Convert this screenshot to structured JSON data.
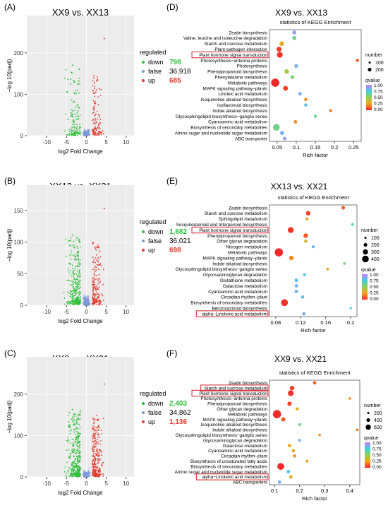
{
  "panels": [
    {
      "label": "(A)",
      "title": "XX9 vs. XX13",
      "xlabel": "log2 Fold Change",
      "ylabel": "−log 10(padj)",
      "legend_title": "regulated",
      "legend": [
        {
          "name": "down",
          "count": "798",
          "color": "#2fbf3b"
        },
        {
          "name": "false",
          "count": "36,918",
          "color": "#7f9ad8"
        },
        {
          "name": "up",
          "count": "685",
          "color": "#e33a2e"
        }
      ]
    },
    {
      "label": "(D)",
      "title": "XX9 vs. XX13",
      "subtitle": "statistics of KEGG Enrichment",
      "xlabel": "Rich factor",
      "size_title": "number",
      "size_legend": [
        "100",
        "200"
      ],
      "color_title": "qvalue",
      "color_ticks": [
        "1.00",
        "0.75",
        "0.50",
        "0.25",
        "0.00"
      ]
    },
    {
      "label": "(B)",
      "title": "XX13 vs. XX21",
      "xlabel": "log2 Fold Change",
      "ylabel": "−log 10(padj)",
      "legend_title": "regulated",
      "legend": [
        {
          "name": "down",
          "count": "1,682",
          "color": "#2fbf3b"
        },
        {
          "name": "false",
          "count": "36,021",
          "color": "#7f9ad8"
        },
        {
          "name": "up",
          "count": "698",
          "color": "#e33a2e"
        }
      ]
    },
    {
      "label": "(E)",
      "title": "XX13 vs. XX21",
      "subtitle": "statistics of KEGG Enrichment",
      "xlabel": "Rich factor",
      "size_title": "number",
      "size_legend": [
        "100",
        "200",
        "300",
        "400"
      ],
      "color_title": "qvalue",
      "color_ticks": [
        "1.00",
        "0.75",
        "0.50",
        "0.25",
        "0.00"
      ]
    },
    {
      "label": "(C)",
      "title": "XX9 vs. XX21",
      "xlabel": "log2 Fold Change",
      "ylabel": "−log 10(padj)",
      "legend_title": "regulated",
      "legend": [
        {
          "name": "down",
          "count": "2,403",
          "color": "#2fbf3b"
        },
        {
          "name": "false",
          "count": "34,862",
          "color": "#7f9ad8"
        },
        {
          "name": "up",
          "count": "1,136",
          "color": "#e33a2e"
        }
      ]
    },
    {
      "label": "(F)",
      "title": "XX9 vs. XX21",
      "subtitle": "statistics of KEGG Enrichment",
      "xlabel": "Rich factor",
      "size_title": "number",
      "size_legend": [
        "200",
        "400",
        "600"
      ],
      "color_title": "qvalue",
      "color_ticks": [
        "1.00",
        "0.75",
        "0.50",
        "0.25",
        "0.00"
      ]
    }
  ],
  "colors": {
    "down": "#2fbf3b",
    "false": "#7f9ad8",
    "up": "#e33a2e",
    "highlight_box": "#d3232a",
    "qvalue_scale": [
      "#f02a2a",
      "#f9a11b",
      "#8fd14f",
      "#3fd1e0",
      "#c77dff"
    ]
  },
  "chart_data": [
    {
      "type": "scatter",
      "title": "XX9 vs. XX13",
      "xlabel": "log2 Fold Change",
      "ylabel": "−log 10(padj)",
      "xlim": [
        -15,
        12
      ],
      "ylim": [
        0,
        290
      ],
      "xticks": [
        -10,
        -5,
        0,
        5,
        10
      ],
      "yticks": [
        0,
        100,
        200
      ],
      "series": [
        {
          "name": "down",
          "count": 798
        },
        {
          "name": "false",
          "count": 36918
        },
        {
          "name": "up",
          "count": 685
        }
      ]
    },
    {
      "type": "scatter",
      "title": "XX9 vs. XX13",
      "subtitle": "statistics of KEGG Enrichment",
      "xlabel": "Rich factor",
      "xlim": [
        0.03,
        0.27
      ],
      "xticks": [
        0.05,
        0.1,
        0.15,
        0.2,
        0.25
      ],
      "pathways": [
        {
          "name": "Zeatin biosynthesis",
          "rich": 0.095,
          "number": 18,
          "q": 0.9
        },
        {
          "name": "Valine, leucine and isoleucine degradation",
          "rich": 0.095,
          "number": 20,
          "q": 0.6
        },
        {
          "name": "Starch and sucrose metabolism",
          "rich": 0.062,
          "number": 30,
          "q": 0.3
        },
        {
          "name": "Plant-pathogen interaction",
          "rich": 0.055,
          "number": 40,
          "q": 0.05
        },
        {
          "name": "Plant hormone signal transduction",
          "rich": 0.057,
          "number": 60,
          "q": 0.02,
          "highlight": true
        },
        {
          "name": "Photosynthesis−antenna proteins",
          "rich": 0.26,
          "number": 8,
          "q": 0.1
        },
        {
          "name": "Photosynthesis",
          "rich": 0.1,
          "number": 15,
          "q": 0.85
        },
        {
          "name": "Phenylpropanoid biosynthesis",
          "rich": 0.075,
          "number": 30,
          "q": 0.45
        },
        {
          "name": "Phenylalanine metabolism",
          "rich": 0.09,
          "number": 15,
          "q": 0.55
        },
        {
          "name": "Metabolic pathways",
          "rich": 0.045,
          "number": 150,
          "q": 0.0
        },
        {
          "name": "MAPK signaling pathway−plants",
          "rich": 0.072,
          "number": 35,
          "q": 0.05
        },
        {
          "name": "Linoleic acid metabolism",
          "rich": 0.11,
          "number": 10,
          "q": 0.85
        },
        {
          "name": "Isoquinoline alkaloid biosynthesis",
          "rich": 0.125,
          "number": 8,
          "q": 0.2
        },
        {
          "name": "Isoflavonoid biosynthesis",
          "rich": 0.125,
          "number": 8,
          "q": 0.8
        },
        {
          "name": "Indole alkaloid biosynthesis",
          "rich": 0.19,
          "number": 5,
          "q": 0.15
        },
        {
          "name": "Glycosphingolipid biosynthesis−ganglio series",
          "rich": 0.15,
          "number": 6,
          "q": 0.6
        },
        {
          "name": "Cyanoamino acid metabolism",
          "rich": 0.098,
          "number": 12,
          "q": 0.2
        },
        {
          "name": "Biosynthesis of secondary metabolites",
          "rich": 0.048,
          "number": 90,
          "q": 0.6
        },
        {
          "name": "Amino sugar and nucleotide sugar metabolism",
          "rich": 0.063,
          "number": 20,
          "q": 0.85
        },
        {
          "name": "ABC transporter",
          "rich": 0.07,
          "number": 12,
          "q": 0.9
        }
      ]
    },
    {
      "type": "scatter",
      "title": "XX13 vs. XX21",
      "xlabel": "log2 Fold Change",
      "ylabel": "−log 10(padj)",
      "xlim": [
        -15,
        12
      ],
      "ylim": [
        0,
        190
      ],
      "xticks": [
        -10,
        -5,
        0,
        5,
        10
      ],
      "yticks": [
        0,
        50,
        100,
        150
      ],
      "series": [
        {
          "name": "down",
          "count": 1682
        },
        {
          "name": "false",
          "count": 36021
        },
        {
          "name": "up",
          "count": 698
        }
      ]
    },
    {
      "type": "scatter",
      "title": "XX13 vs. XX21",
      "subtitle": "statistics of KEGG Enrichment",
      "xlabel": "Rich factor",
      "xlim": [
        0.07,
        0.21
      ],
      "xticks": [
        0.08,
        0.12,
        0.16,
        0.2
      ],
      "pathways": [
        {
          "name": "Zeatin biosynthesis",
          "rich": 0.188,
          "number": 40,
          "q": 0.1
        },
        {
          "name": "Starch and sucrose metabolism",
          "rich": 0.132,
          "number": 80,
          "q": 0.05
        },
        {
          "name": "Sphingolipid metabolism",
          "rich": 0.13,
          "number": 20,
          "q": 0.3
        },
        {
          "name": "Sesquiterpenoid and triterpenoid biosynthesis",
          "rich": 0.203,
          "number": 10,
          "q": 0.7
        },
        {
          "name": "Plant hormone signal transduction",
          "rich": 0.104,
          "number": 180,
          "q": 0.02,
          "highlight": true
        },
        {
          "name": "Phenylpropanoid biosynthesis",
          "rich": 0.128,
          "number": 80,
          "q": 0.1
        },
        {
          "name": "Other glycan degradation",
          "rich": 0.128,
          "number": 20,
          "q": 0.35
        },
        {
          "name": "Nitrogen metabolism",
          "rich": 0.14,
          "number": 15,
          "q": 0.85
        },
        {
          "name": "Metabolic pathways",
          "rich": 0.085,
          "number": 430,
          "q": 0.0
        },
        {
          "name": "MAPK signaling pathway−plants",
          "rich": 0.105,
          "number": 80,
          "q": 0.2
        },
        {
          "name": "Indole alkaloid biosynthesis",
          "rich": 0.19,
          "number": 8,
          "q": 0.6
        },
        {
          "name": "Glycosphingolipid biosynthesis−ganglio series",
          "rich": 0.163,
          "number": 10,
          "q": 0.25
        },
        {
          "name": "Glycosaminoglycan degradation",
          "rich": 0.126,
          "number": 20,
          "q": 0.8
        },
        {
          "name": "Glutathione metabolism",
          "rich": 0.113,
          "number": 35,
          "q": 0.8
        },
        {
          "name": "Galactose metabolism",
          "rich": 0.113,
          "number": 30,
          "q": 0.85
        },
        {
          "name": "Cyanoamino acid metabolism",
          "rich": 0.113,
          "number": 30,
          "q": 0.85
        },
        {
          "name": "Circadian rhythm−plant",
          "rich": 0.123,
          "number": 25,
          "q": 0.8
        },
        {
          "name": "Biosynthesis of secondary metabolites",
          "rich": 0.094,
          "number": 280,
          "q": 0.02
        },
        {
          "name": "Benzoxazinoid biosynthesis",
          "rich": 0.2,
          "number": 5,
          "q": 0.75
        },
        {
          "name": "alpha−Linolenic acid metabolism",
          "rich": 0.125,
          "number": 30,
          "q": 0.85,
          "highlight": true
        }
      ]
    },
    {
      "type": "scatter",
      "title": "XX9 vs. XX21",
      "xlabel": "log2 Fold Change",
      "ylabel": "−log 10(padj)",
      "xlim": [
        -15,
        12
      ],
      "ylim": [
        0,
        290
      ],
      "xticks": [
        -10,
        -5,
        0,
        5,
        10
      ],
      "yticks": [
        0,
        100,
        200
      ],
      "series": [
        {
          "name": "down",
          "count": 2403
        },
        {
          "name": "false",
          "count": 34862
        },
        {
          "name": "up",
          "count": 1136
        }
      ]
    },
    {
      "type": "scatter",
      "title": "XX9 vs. XX21",
      "subtitle": "statistics of KEGG Enrichment",
      "xlabel": "Rich factor",
      "xlim": [
        0.08,
        0.44
      ],
      "xticks": [
        0.1,
        0.2,
        0.3,
        0.4
      ],
      "pathways": [
        {
          "name": "Zeatin biosynthesis",
          "rich": 0.26,
          "number": 40,
          "q": 0.1
        },
        {
          "name": "Starch and sucrose metabolism",
          "rich": 0.17,
          "number": 120,
          "q": 0.05,
          "highlight": true
        },
        {
          "name": "Plant hormone signal transduction",
          "rich": 0.165,
          "number": 250,
          "q": 0.02,
          "highlight": true
        },
        {
          "name": "Photosynthesis−antenna proteins",
          "rich": 0.4,
          "number": 10,
          "q": 0.2
        },
        {
          "name": "Phenylpropanoid biosynthesis",
          "rich": 0.16,
          "number": 100,
          "q": 0.05
        },
        {
          "name": "Other glycan degradation",
          "rich": 0.19,
          "number": 30,
          "q": 0.3
        },
        {
          "name": "Metabolic pathways",
          "rich": 0.11,
          "number": 620,
          "q": 0.0
        },
        {
          "name": "MAPK signaling pathway−plants",
          "rich": 0.135,
          "number": 100,
          "q": 0.1
        },
        {
          "name": "Isoquinoline alkaloid biosynthesis",
          "rich": 0.2,
          "number": 20,
          "q": 0.6
        },
        {
          "name": "Indole alkaloid biosynthesis",
          "rich": 0.43,
          "number": 10,
          "q": 0.15
        },
        {
          "name": "Glycosphingolipid biosynthesis−ganglio series",
          "rich": 0.28,
          "number": 10,
          "q": 0.2
        },
        {
          "name": "Glycosaminoglycan degradation",
          "rich": 0.2,
          "number": 20,
          "q": 0.85
        },
        {
          "name": "Galactose metabolism",
          "rich": 0.16,
          "number": 40,
          "q": 0.25
        },
        {
          "name": "Cyanoamino acid metabolism",
          "rich": 0.175,
          "number": 40,
          "q": 0.3
        },
        {
          "name": "Circadian rhythm−plant",
          "rich": 0.18,
          "number": 35,
          "q": 0.2
        },
        {
          "name": "Biosynthesis of unsaturated fatty acids",
          "rich": 0.23,
          "number": 20,
          "q": 0.3
        },
        {
          "name": "Biosynthesis of secondary metabolites",
          "rich": 0.125,
          "number": 400,
          "q": 0.0
        },
        {
          "name": "Amino sugar and nucleotide sugar metabolism",
          "rich": 0.155,
          "number": 50,
          "q": 0.8
        },
        {
          "name": "alpha−Linolenic acid metabolism",
          "rich": 0.165,
          "number": 45,
          "q": 0.3,
          "highlight": true
        },
        {
          "name": "ABC transporters",
          "rich": 0.12,
          "number": 40,
          "q": 0.85
        }
      ]
    }
  ]
}
